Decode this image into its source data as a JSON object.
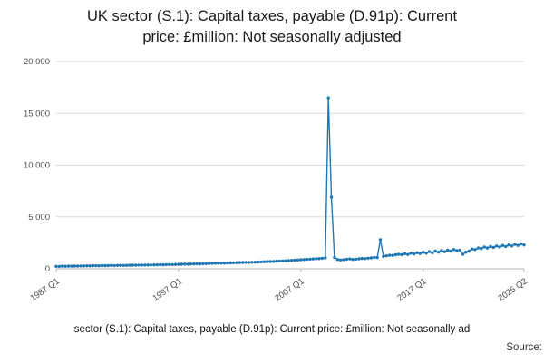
{
  "title": {
    "line1": "UK sector (S.1): Capital taxes, payable (D.91p): Current",
    "line2": "price: £million: Not seasonally adjusted"
  },
  "legend": {
    "label": "sector (S.1): Capital taxes, payable (D.91p): Current price: £million: Not seasonally ad"
  },
  "footer": {
    "source": "Source:"
  },
  "chart_data": {
    "type": "line",
    "title": "UK sector (S.1): Capital taxes, payable (D.91p): Current price: £million: Not seasonally adjusted",
    "series_name": "UK sector (S.1): Capital taxes, payable (D.91p): Current price: £million: Not seasonally adjusted",
    "frequency": "quarterly",
    "x_start": "1987 Q1",
    "x_end": "2025 Q2",
    "xlabel": "",
    "ylabel": "",
    "ylim": [
      0,
      20000
    ],
    "grid": true,
    "legend_position": "bottom",
    "line_color": "#1f77b4",
    "grid_color": "#d9d9d9",
    "axis_color": "#b3b3b3",
    "y_ticks": [
      {
        "value": 0,
        "label": "0"
      },
      {
        "value": 5000,
        "label": "5 000"
      },
      {
        "value": 10000,
        "label": "10 000"
      },
      {
        "value": 15000,
        "label": "15 000"
      },
      {
        "value": 20000,
        "label": "20 000"
      }
    ],
    "x_ticks": [
      {
        "index": 0,
        "label": "1987 Q1"
      },
      {
        "index": 40,
        "label": "1997 Q1"
      },
      {
        "index": 80,
        "label": "2007 Q1"
      },
      {
        "index": 120,
        "label": "2017 Q1"
      },
      {
        "index": 153,
        "label": "2025 Q2"
      }
    ],
    "values": [
      240,
      230,
      250,
      245,
      255,
      250,
      265,
      260,
      275,
      270,
      285,
      280,
      295,
      300,
      290,
      305,
      310,
      305,
      320,
      315,
      320,
      330,
      325,
      335,
      340,
      345,
      350,
      355,
      360,
      355,
      370,
      365,
      375,
      380,
      390,
      385,
      400,
      410,
      405,
      420,
      430,
      440,
      450,
      445,
      460,
      470,
      480,
      475,
      490,
      500,
      510,
      520,
      530,
      540,
      550,
      545,
      560,
      570,
      580,
      590,
      600,
      610,
      620,
      615,
      630,
      640,
      650,
      660,
      680,
      690,
      700,
      710,
      730,
      750,
      760,
      770,
      790,
      810,
      830,
      850,
      870,
      890,
      910,
      930,
      950,
      970,
      990,
      1010,
      1050,
      16500,
      6900,
      1100,
      900,
      850,
      880,
      920,
      950,
      900,
      930,
      960,
      1000,
      980,
      1020,
      1050,
      1100,
      1080,
      2800,
      1200,
      1250,
      1300,
      1280,
      1350,
      1400,
      1350,
      1450,
      1380,
      1500,
      1420,
      1550,
      1480,
      1600,
      1500,
      1650,
      1550,
      1700,
      1600,
      1750,
      1650,
      1800,
      1700,
      1850,
      1750,
      1800,
      1400,
      1600,
      1700,
      1900,
      1850,
      2000,
      1950,
      2100,
      2000,
      2150,
      2050,
      2200,
      2100,
      2250,
      2150,
      2300,
      2200,
      2350,
      2250,
      2400,
      2300
    ]
  }
}
